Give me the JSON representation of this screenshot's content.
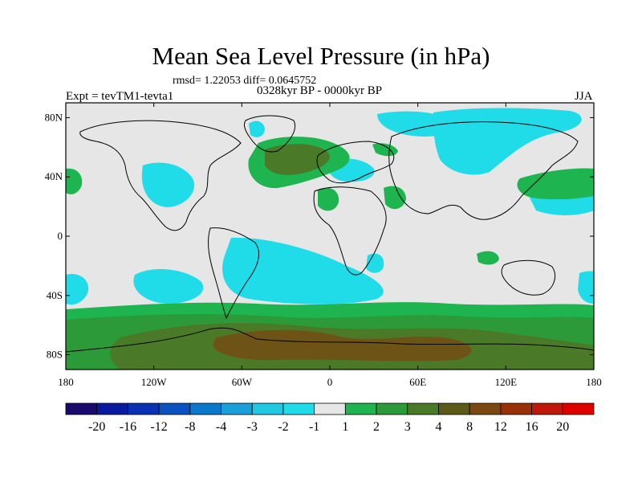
{
  "title": "Mean Sea Level Pressure (in hPa)",
  "stats": "rmsd= 1.22053 diff= 0.0645752",
  "period": "0328kyr BP - 0000kyr BP",
  "experiment": "Expt = tevTM1-tevta1",
  "season": "JJA",
  "lat_labels": [
    "80N",
    "40N",
    "0",
    "40S",
    "80S"
  ],
  "lat_values": [
    80,
    40,
    0,
    -40,
    -80
  ],
  "lon_labels": [
    "180",
    "120W",
    "60W",
    "0",
    "60E",
    "120E",
    "180"
  ],
  "lon_values": [
    -180,
    -120,
    -60,
    0,
    60,
    120,
    180
  ],
  "extent": {
    "lon": [
      -180,
      180
    ],
    "lat": [
      -90,
      90
    ]
  },
  "colorbar": {
    "labels": [
      "-20",
      "-16",
      "-12",
      "-8",
      "-4",
      "-3",
      "-2",
      "-1",
      "1",
      "2",
      "3",
      "4",
      "8",
      "12",
      "16",
      "20"
    ],
    "colors": [
      "#1a0a6e",
      "#0a1aa0",
      "#0a30b4",
      "#0a52c0",
      "#0a78cc",
      "#1aa0d8",
      "#20c8e4",
      "#20dce8",
      "#e6e6e6",
      "#1eb450",
      "#2c9a38",
      "#4a7a28",
      "#5c5a18",
      "#7a4810",
      "#9a3008",
      "#c01808",
      "#e00000"
    ]
  },
  "regions_legend": {
    "negative_fill": "#20dce8",
    "neutral_fill": "#e6e6e6",
    "positive_low_fill": "#1eb450",
    "positive_mid_fill": "#2c9a38",
    "positive_high_fill": "#4a7a28",
    "positive_top_fill": "#7a4810"
  }
}
